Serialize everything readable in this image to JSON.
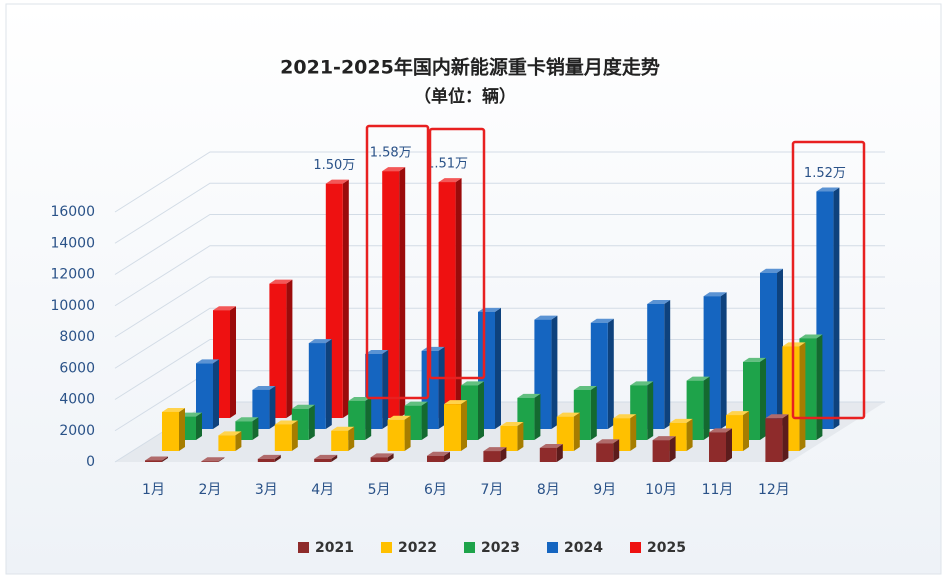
{
  "chart_data": {
    "type": "bar3d",
    "title": "2021-2025年国内新能源重卡销量月度走势",
    "subtitle": "（单位：辆）",
    "categories": [
      "1月",
      "2月",
      "3月",
      "4月",
      "5月",
      "6月",
      "7月",
      "8月",
      "9月",
      "10月",
      "11月",
      "12月"
    ],
    "series": [
      {
        "name": "2021",
        "color": "#8e2b2b",
        "values": [
          100,
          50,
          200,
          200,
          300,
          400,
          700,
          900,
          1200,
          1400,
          1900,
          2800
        ]
      },
      {
        "name": "2022",
        "color": "#ffc000",
        "values": [
          2500,
          1000,
          1700,
          1300,
          2000,
          3000,
          1600,
          2200,
          2100,
          1800,
          2300,
          6700
        ]
      },
      {
        "name": "2023",
        "color": "#1ea34a",
        "values": [
          1500,
          1200,
          2000,
          2500,
          2200,
          3500,
          2700,
          3200,
          3500,
          3800,
          5000,
          6500
        ]
      },
      {
        "name": "2024",
        "color": "#1565c0",
        "values": [
          4200,
          2500,
          5500,
          4800,
          5000,
          7500,
          7000,
          6800,
          8000,
          8500,
          10000,
          15200
        ],
        "value_labels": [
          null,
          null,
          null,
          null,
          null,
          null,
          null,
          null,
          null,
          null,
          null,
          "1.52万"
        ]
      },
      {
        "name": "2025",
        "color": "#ee1111",
        "values": [
          6900,
          8600,
          15000,
          15800,
          15100,
          null,
          null,
          null,
          null,
          null,
          null,
          null
        ],
        "value_labels": [
          null,
          null,
          "1.50万",
          "1.58万",
          "1.51万",
          null,
          null,
          null,
          null,
          null,
          null,
          null
        ]
      }
    ],
    "ylim": [
      0,
      16000
    ],
    "yticks": [
      0,
      2000,
      4000,
      6000,
      8000,
      10000,
      12000,
      14000,
      16000
    ],
    "grid": true,
    "legend": "bottom"
  }
}
